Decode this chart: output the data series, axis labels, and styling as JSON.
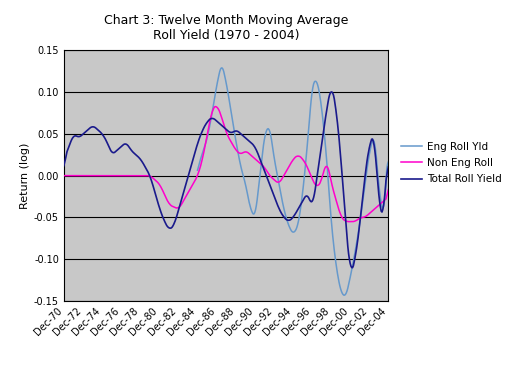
{
  "title_line1": "Chart 3: Twelve Month Moving Average",
  "title_line2": "Roll Yield (1970 - 2004)",
  "ylabel": "Return (log)",
  "background_color": "#c8c8c8",
  "figure_facecolor": "#ffffff",
  "ylim": [
    -0.15,
    0.15
  ],
  "yticks": [
    -0.15,
    -0.1,
    -0.05,
    0.0,
    0.05,
    0.1,
    0.15
  ],
  "xtick_labels": [
    "Dec-70",
    "Dec-72",
    "Dec-74",
    "Dec-76",
    "Dec-78",
    "Dec-80",
    "Dec-82",
    "Dec-84",
    "Dec-86",
    "Dec-88",
    "Dec-90",
    "Dec-92",
    "Dec-94",
    "Dec-96",
    "Dec-98",
    "Dec-00",
    "Dec-02",
    "Dec-04"
  ],
  "legend_labels": [
    "Total Roll Yield",
    "Non Eng Roll",
    "Eng Roll Yld"
  ],
  "colors": {
    "total": "#1a1a8c",
    "non_eng": "#ff00cc",
    "eng": "#6699cc"
  },
  "linewidths": {
    "total": 1.2,
    "non_eng": 1.1,
    "eng": 1.1
  },
  "hline_color": "#000000",
  "hline_lw": 0.8,
  "title_fontsize": 9,
  "ylabel_fontsize": 8,
  "tick_fontsize": 7,
  "legend_fontsize": 7.5
}
